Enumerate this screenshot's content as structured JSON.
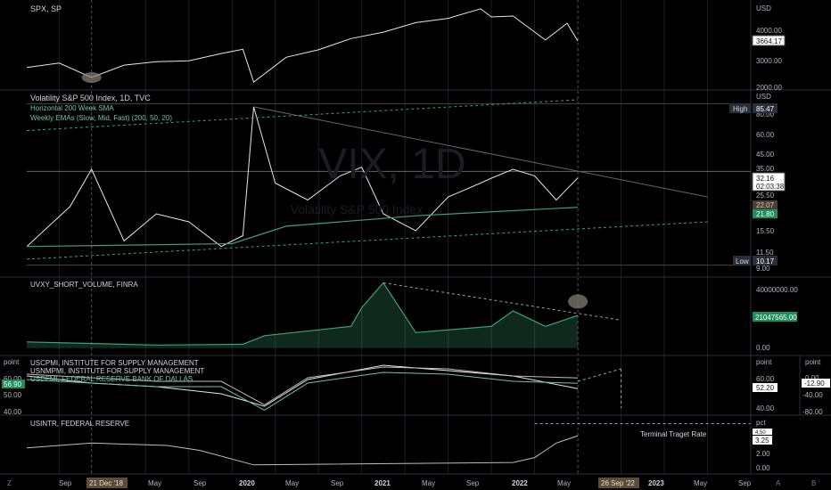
{
  "colors": {
    "background": "#000000",
    "grid": "#1f1f24",
    "axis_text": "#b2b5be",
    "line_white": "#e6e6e6",
    "green": "#3aa27a",
    "green_tag": "#1e8f5c",
    "dashed": "#9a9ea8",
    "date_tag": "#5a4d3a"
  },
  "panes": {
    "spx": {
      "title": "SPX, SP",
      "axis_title": "USD",
      "ticks": [
        "4000.00",
        "3000.00",
        "2000.00"
      ],
      "price_tag": "3664.17"
    },
    "vix": {
      "title": "Volatility S&P 500 Index, 1D, TVC",
      "subtitle_1": "Horizontal 200 Week SMA",
      "subtitle_2": "Weekly EMAs (Slow, Mid, Fast) (200, 50, 20)",
      "watermark": "VIX, 1D",
      "watermark_sub": "Volatility S&P 500 Index",
      "axis_title": "USD",
      "ticks": [
        "80.00",
        "60.00",
        "45.00",
        "35.00",
        "25.50",
        "15.50",
        "11.50",
        "9.00"
      ],
      "high_label": "High",
      "high_value": "85.47",
      "low_label": "Low",
      "low_value": "10.17",
      "price_tag": "32.16",
      "countdown": "02:03:38",
      "tag_a": "22.07",
      "tag_b": "21.80"
    },
    "uvxy": {
      "title": "UVXY_SHORT_VOLUME, FINRA",
      "ticks": [
        "40000000.00",
        "0.00"
      ],
      "value_tag": "21047565.00"
    },
    "pmi": {
      "legend": [
        "USCPMI, INSTITUTE FOR SUPPLY MANAGEMENT",
        "USNMPMI, INSTITUTE FOR SUPPLY MANAGEMENT",
        "USDFMI, FEDERAL RESERVE BANK OF DALLAS"
      ],
      "left_axis_title": "point",
      "left_ticks": [
        "60.00",
        "50.00",
        "40.00"
      ],
      "left_tag": "56.90",
      "mid_axis_title": "point",
      "mid_ticks": [
        "60.00",
        "40.00"
      ],
      "mid_tag": "52.20",
      "right_axis_title": "point",
      "right_ticks": [
        "0.00",
        "-40.00",
        "-80.00"
      ],
      "right_tag": "-12.90"
    },
    "rates": {
      "title": "USINTR, FEDERAL RESERVE",
      "annotation": "Terminal Traget Rate",
      "axis_title": "pct",
      "ticks": [
        "2.00",
        "0.00"
      ],
      "tag_upper": "4.50",
      "tag_lower": "3.25"
    }
  },
  "time_axis": {
    "labels": [
      "Sep",
      "May",
      "Sep",
      "2020",
      "May",
      "Sep",
      "2021",
      "May",
      "Sep",
      "2022",
      "May",
      "2023",
      "May",
      "Sep"
    ],
    "left_date_tag": "21 Dec '18",
    "right_date_tag": "26 Sep '22",
    "buttons": [
      "Z",
      "A",
      "B"
    ]
  },
  "chart_data": {
    "type": "line",
    "x_range": [
      "2018-06",
      "2024-01"
    ],
    "series": [
      {
        "name": "SPX",
        "x": [
          "2018-06",
          "2018-09",
          "2018-12",
          "2019-03",
          "2019-06",
          "2019-09",
          "2019-12",
          "2020-02",
          "2020-03",
          "2020-06",
          "2020-09",
          "2020-12",
          "2021-03",
          "2021-06",
          "2021-09",
          "2021-12",
          "2022-01",
          "2022-03",
          "2022-06",
          "2022-08",
          "2022-09"
        ],
        "y": [
          2750,
          2900,
          2400,
          2830,
          2950,
          2980,
          3230,
          3380,
          2240,
          3100,
          3360,
          3750,
          3970,
          4300,
          4450,
          4780,
          4500,
          4530,
          3700,
          4280,
          3664
        ],
        "ylim": [
          2000,
          4900
        ]
      },
      {
        "name": "VIX",
        "x": [
          "2018-06",
          "2018-10",
          "2018-12",
          "2019-03",
          "2019-06",
          "2019-09",
          "2019-12",
          "2020-02",
          "2020-03",
          "2020-05",
          "2020-08",
          "2020-11",
          "2021-01",
          "2021-03",
          "2021-06",
          "2021-09",
          "2021-12",
          "2022-01",
          "2022-03",
          "2022-05",
          "2022-07",
          "2022-09"
        ],
        "y": [
          13,
          22,
          36,
          14,
          20,
          18,
          13,
          15,
          82,
          30,
          24,
          33,
          37,
          20,
          16,
          25,
          30,
          32,
          36,
          33,
          24,
          32.16
        ],
        "ylim": [
          9,
          90
        ],
        "scale": "log",
        "high": 85.47,
        "low": 10.17
      },
      {
        "name": "VIX 200 Week SMA",
        "x": [
          "2018-06",
          "2020-01",
          "2020-06",
          "2021-06",
          "2022-09"
        ],
        "y": [
          13,
          13.5,
          17,
          19.5,
          21.8
        ]
      },
      {
        "name": "UVXY_SHORT_VOLUME",
        "x": [
          "2018-06",
          "2019-06",
          "2020-02",
          "2020-04",
          "2020-12",
          "2021-01",
          "2021-03",
          "2021-06",
          "2022-01",
          "2022-03",
          "2022-06",
          "2022-09"
        ],
        "y": [
          4000000,
          2000000,
          2500000,
          8000000,
          14000000,
          26000000,
          42000000,
          10000000,
          14000000,
          24000000,
          14000000,
          21047565
        ],
        "ylim": [
          -3000000,
          44000000
        ]
      },
      {
        "name": "USCPMI",
        "x": [
          "2018-06",
          "2018-12",
          "2019-06",
          "2019-12",
          "2020-04",
          "2020-08",
          "2021-03",
          "2021-09",
          "2022-03",
          "2022-09"
        ],
        "y": [
          58,
          54,
          52,
          48,
          41,
          56,
          64,
          61,
          58,
          50.9
        ]
      },
      {
        "name": "USNMPMI",
        "x": [
          "2018-06",
          "2018-12",
          "2019-06",
          "2019-12",
          "2020-04",
          "2020-08",
          "2021-03",
          "2021-09",
          "2022-03",
          "2022-09"
        ],
        "y": [
          59,
          57,
          55,
          55,
          41.8,
          57,
          63,
          62,
          58,
          56.9
        ]
      },
      {
        "name": "USINTR",
        "x": [
          "2018-06",
          "2018-12",
          "2019-07",
          "2019-10",
          "2020-03",
          "2022-03",
          "2022-05",
          "2022-06",
          "2022-07",
          "2022-09"
        ],
        "y": [
          2.0,
          2.5,
          2.25,
          1.75,
          0.25,
          0.5,
          1.0,
          1.75,
          2.5,
          3.25
        ],
        "ylim": [
          -0.5,
          5
        ]
      }
    ]
  }
}
